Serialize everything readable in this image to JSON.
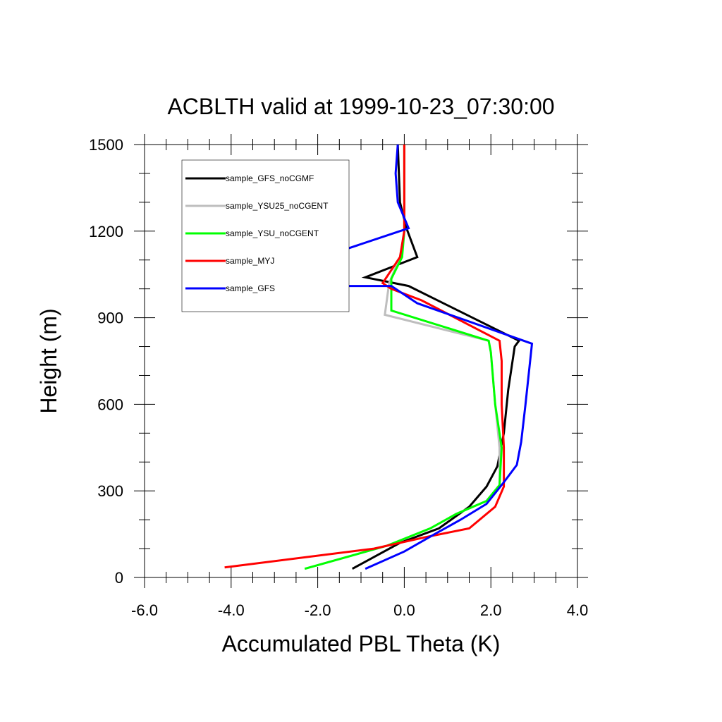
{
  "chart_data": {
    "type": "line",
    "title": "ACBLTH valid at 1999-10-23_07:30:00",
    "xlabel": "Accumulated PBL Theta (K)",
    "ylabel": "Height (m)",
    "xlim": [
      -6.0,
      4.0
    ],
    "ylim": [
      0,
      1500
    ],
    "xticks": [
      -6.0,
      -4.0,
      -2.0,
      0.0,
      2.0,
      4.0
    ],
    "xtick_labels": [
      "-6.0",
      "-4.0",
      "-2.0",
      "0.0",
      "2.0",
      "4.0"
    ],
    "yticks": [
      0,
      300,
      600,
      900,
      1200,
      1500
    ],
    "ytick_labels": [
      "0",
      "300",
      "600",
      "900",
      "1200",
      "1500"
    ],
    "grid": false,
    "legend_position": "top-left",
    "series": [
      {
        "name": "sample_GFS_noCGMF",
        "color": "#000000",
        "points": [
          [
            -1.2,
            30
          ],
          [
            -0.1,
            120
          ],
          [
            0.8,
            170
          ],
          [
            1.5,
            245
          ],
          [
            1.9,
            315
          ],
          [
            2.15,
            385
          ],
          [
            2.3,
            500
          ],
          [
            2.4,
            650
          ],
          [
            2.55,
            800
          ],
          [
            2.65,
            820
          ],
          [
            0.1,
            1010
          ],
          [
            -0.9,
            1040
          ],
          [
            0.3,
            1110
          ],
          [
            0.05,
            1210
          ],
          [
            -0.1,
            1300
          ],
          [
            -0.15,
            1500
          ]
        ]
      },
      {
        "name": "sample_YSU25_noCGENT",
        "color": "#bebebe",
        "points": [
          [
            -2.3,
            30
          ],
          [
            -0.4,
            110
          ],
          [
            0.6,
            170
          ],
          [
            1.2,
            220
          ],
          [
            1.9,
            265
          ],
          [
            2.2,
            320
          ],
          [
            2.2,
            450
          ],
          [
            2.1,
            600
          ],
          [
            2.0,
            780
          ],
          [
            1.95,
            820
          ],
          [
            -0.45,
            910
          ],
          [
            -0.35,
            1020
          ],
          [
            -0.1,
            1110
          ],
          [
            0.0,
            1200
          ],
          [
            0.0,
            1350
          ],
          [
            0.0,
            1500
          ]
        ]
      },
      {
        "name": "sample_YSU_noCGENT",
        "color": "#00ff00",
        "points": [
          [
            -2.3,
            30
          ],
          [
            -0.4,
            110
          ],
          [
            0.6,
            170
          ],
          [
            1.2,
            220
          ],
          [
            1.9,
            265
          ],
          [
            2.2,
            320
          ],
          [
            2.25,
            450
          ],
          [
            2.1,
            600
          ],
          [
            2.0,
            780
          ],
          [
            1.95,
            820
          ],
          [
            -0.3,
            925
          ],
          [
            -0.3,
            1035
          ],
          [
            -0.05,
            1110
          ],
          [
            0.0,
            1200
          ],
          [
            0.0,
            1350
          ],
          [
            0.0,
            1500
          ]
        ]
      },
      {
        "name": "sample_MYJ",
        "color": "#ff0000",
        "points": [
          [
            -4.15,
            35
          ],
          [
            -0.7,
            100
          ],
          [
            0.5,
            140
          ],
          [
            1.5,
            170
          ],
          [
            2.1,
            245
          ],
          [
            2.3,
            315
          ],
          [
            2.3,
            450
          ],
          [
            2.25,
            600
          ],
          [
            2.25,
            750
          ],
          [
            2.2,
            820
          ],
          [
            0.4,
            960
          ],
          [
            -0.3,
            1000
          ],
          [
            -0.5,
            1020
          ],
          [
            -0.1,
            1110
          ],
          [
            0.0,
            1200
          ],
          [
            0.0,
            1350
          ],
          [
            0.0,
            1500
          ]
        ]
      },
      {
        "name": "sample_GFS",
        "color": "#0000ff",
        "points": [
          [
            -0.9,
            30
          ],
          [
            0.0,
            90
          ],
          [
            0.7,
            150
          ],
          [
            1.3,
            200
          ],
          [
            1.9,
            255
          ],
          [
            2.3,
            330
          ],
          [
            2.6,
            390
          ],
          [
            2.7,
            470
          ],
          [
            2.8,
            600
          ],
          [
            2.95,
            810
          ],
          [
            0.3,
            950
          ],
          [
            -0.3,
            1010
          ],
          [
            -2.7,
            1010
          ],
          [
            -1.5,
            1130
          ],
          [
            0.1,
            1210
          ],
          [
            -0.15,
            1300
          ],
          [
            -0.2,
            1400
          ],
          [
            -0.15,
            1500
          ]
        ]
      }
    ]
  }
}
